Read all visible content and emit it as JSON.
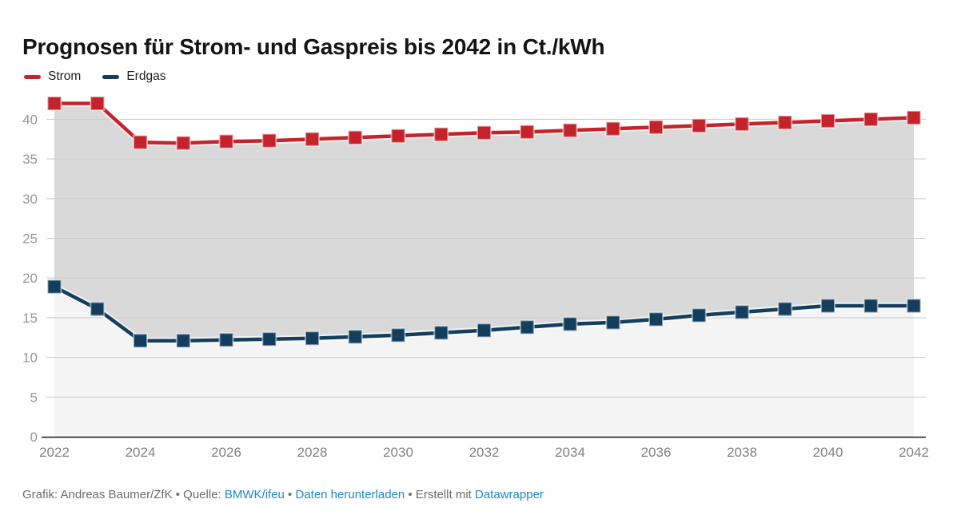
{
  "title": "Prognosen für Strom- und Gaspreis bis 2042 in Ct./kWh",
  "legend": {
    "items": [
      {
        "id": "strom",
        "label": "Strom",
        "color": "#c5232b"
      },
      {
        "id": "erdgas",
        "label": "Erdgas",
        "color": "#143e5e"
      }
    ]
  },
  "footer": {
    "segments": [
      {
        "text": "Grafik: Andreas Baumer/ZfK",
        "type": "text",
        "name": "footer-credit"
      },
      {
        "text": " • ",
        "type": "sep",
        "name": "footer-separator"
      },
      {
        "text": "Quelle: ",
        "type": "text",
        "name": "footer-source-label"
      },
      {
        "text": "BMWK/ifeu",
        "type": "link",
        "name": "footer-link-source"
      },
      {
        "text": " • ",
        "type": "sep",
        "name": "footer-separator"
      },
      {
        "text": "Daten herunterladen",
        "type": "link",
        "name": "footer-link-download"
      },
      {
        "text": " • ",
        "type": "sep",
        "name": "footer-separator"
      },
      {
        "text": "Erstellt mit ",
        "type": "text",
        "name": "footer-created-with"
      },
      {
        "text": "Datawrapper",
        "type": "link",
        "name": "footer-link-datawrapper"
      }
    ]
  },
  "colors": {
    "strom_red": "#c5232b",
    "erdgas_blue": "#143e5e",
    "band_fill": "#d9d9d9",
    "below_fill": "#f4f4f4",
    "gridline": "#cdcdcd",
    "axis_line": "#1a1a1a",
    "y_tick_label": "#979797",
    "x_tick_label": "#828282",
    "footer_text": "#6b6b6b",
    "link_blue": "#1d87c9",
    "title_text": "#141414",
    "legend_text": "#202020"
  },
  "chart_data": {
    "type": "line",
    "title": "Prognosen für Strom- und Gaspreis bis 2042 in Ct./kWh",
    "xlabel": "",
    "ylabel": "Ct./kWh",
    "x": [
      2022,
      2023,
      2024,
      2025,
      2026,
      2027,
      2028,
      2029,
      2030,
      2031,
      2032,
      2033,
      2034,
      2035,
      2036,
      2037,
      2038,
      2039,
      2040,
      2041,
      2042
    ],
    "series": [
      {
        "name": "Strom",
        "color": "#c5232b",
        "values": [
          42.0,
          42.0,
          37.1,
          37.0,
          37.2,
          37.3,
          37.5,
          37.7,
          37.9,
          38.1,
          38.3,
          38.4,
          38.6,
          38.8,
          39.0,
          39.2,
          39.4,
          39.6,
          39.8,
          40.0,
          40.2
        ]
      },
      {
        "name": "Erdgas",
        "color": "#143e5e",
        "values": [
          18.9,
          16.1,
          12.1,
          12.1,
          12.2,
          12.3,
          12.4,
          12.6,
          12.8,
          13.1,
          13.4,
          13.8,
          14.2,
          14.4,
          14.8,
          15.3,
          15.7,
          16.1,
          16.5,
          16.5,
          16.5
        ]
      }
    ],
    "ylim": [
      0,
      43
    ],
    "yticks": [
      0,
      5,
      10,
      15,
      20,
      25,
      30,
      35,
      40
    ],
    "xticks": [
      2022,
      2024,
      2026,
      2028,
      2030,
      2032,
      2034,
      2036,
      2038,
      2040,
      2042
    ],
    "grid": true,
    "legend_position": "top-left",
    "marker": "square",
    "area_between_series_fill": "#d9d9d9",
    "area_below_lower_series_fill": "#f4f4f4"
  }
}
